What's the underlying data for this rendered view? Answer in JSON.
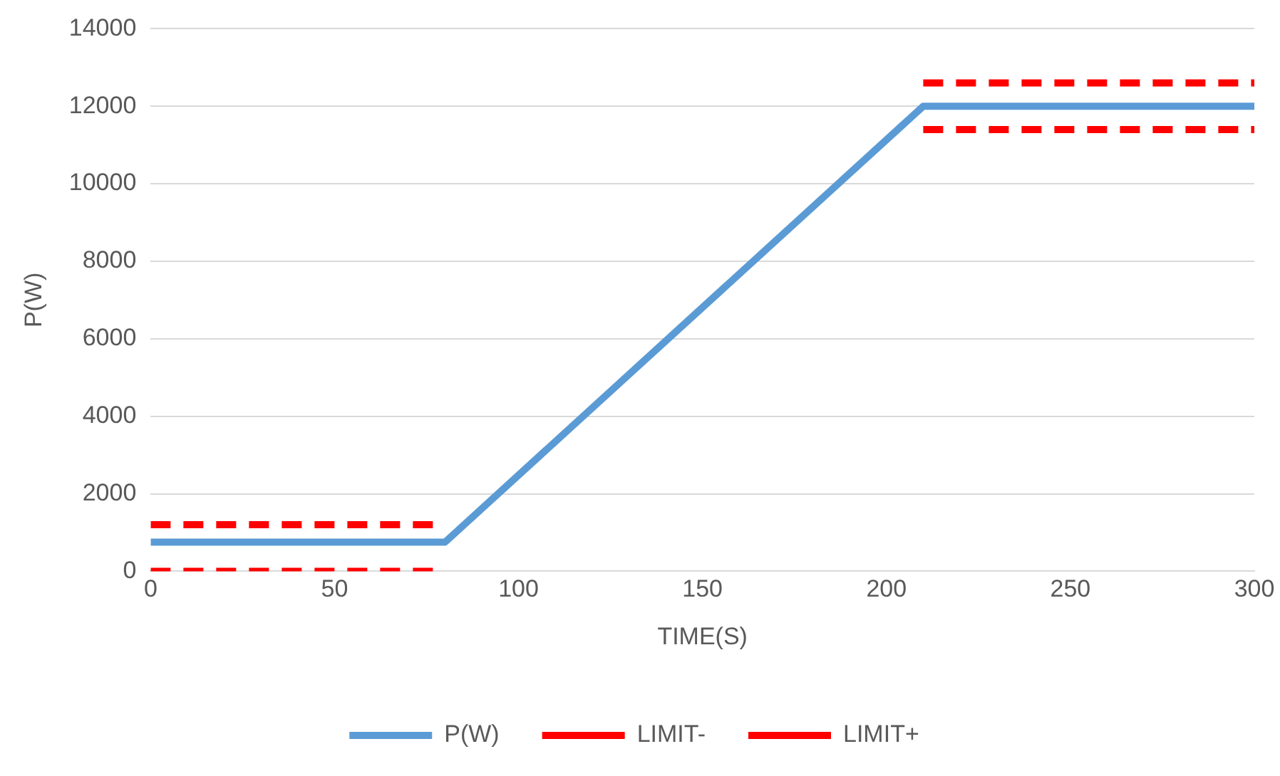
{
  "chart_data": {
    "type": "line",
    "xlabel": "TIME(S)",
    "ylabel": "P(W)",
    "xlim": [
      0,
      300
    ],
    "xticks": [
      0,
      50,
      100,
      150,
      200,
      250,
      300
    ],
    "ylim": [
      0,
      14000
    ],
    "yticks": [
      0,
      2000,
      4000,
      6000,
      8000,
      10000,
      12000,
      14000
    ],
    "grid": "y",
    "legend": "bottom",
    "marker": "none",
    "series": [
      {
        "name": "P(W)",
        "color": "#5b9bd5",
        "line_style": "solid",
        "x": [
          0,
          80,
          210,
          300
        ],
        "values": [
          750,
          750,
          12000,
          12000
        ]
      },
      {
        "name": "LIMIT-",
        "color": "#ff0000",
        "line_style": "dashed",
        "x": [
          0,
          80,
          null,
          210,
          300
        ],
        "values": [
          0,
          0,
          null,
          11400,
          11400
        ]
      },
      {
        "name": "LIMIT+",
        "color": "#ff0000",
        "line_style": "dashed",
        "x": [
          0,
          80,
          null,
          210,
          300
        ],
        "values": [
          1200,
          1200,
          null,
          12600,
          12600
        ]
      }
    ]
  }
}
